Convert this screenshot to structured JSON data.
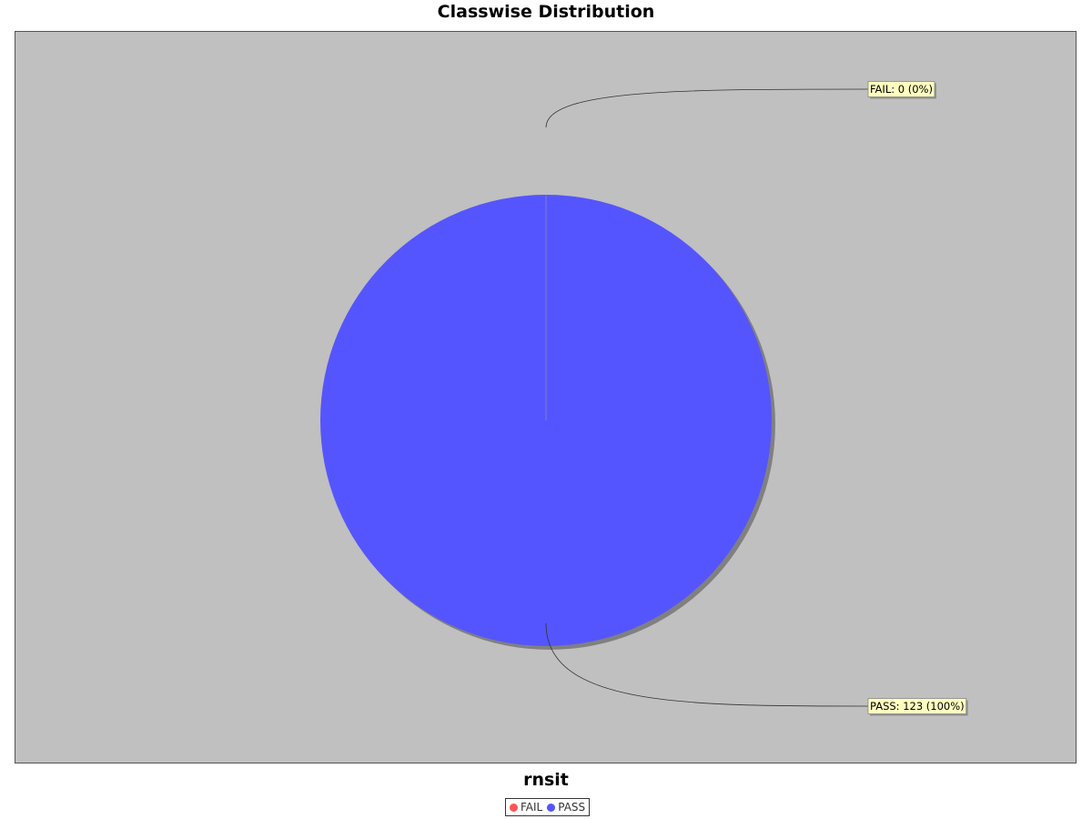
{
  "chart_data": {
    "type": "pie",
    "title": "Classwise Distribution",
    "subtitle": "rnsit",
    "slices": [
      {
        "name": "FAIL",
        "value": 0,
        "percent": "0%",
        "label": "FAIL: 0 (0%)",
        "color": "#ff5555"
      },
      {
        "name": "PASS",
        "value": 123,
        "percent": "100%",
        "label": "PASS: 123 (100%)",
        "color": "#5555ff"
      }
    ],
    "legend": {
      "position": "bottom-center",
      "entries": [
        "FAIL",
        "PASS"
      ]
    },
    "background_color": "#c0c0c0"
  }
}
